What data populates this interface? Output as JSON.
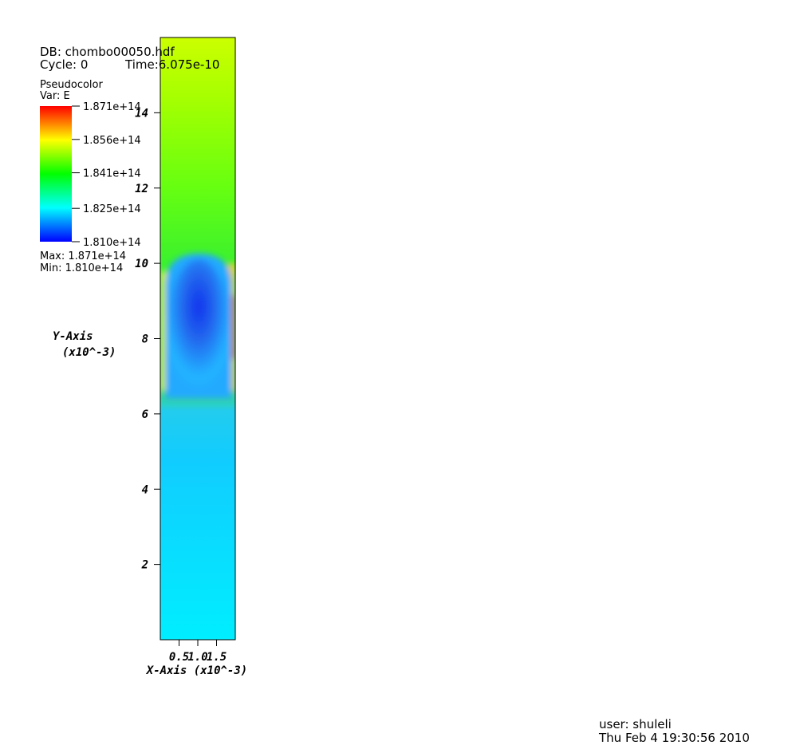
{
  "chart_data": {
    "type": "pseudocolor",
    "db": "DB: chombo00050.hdf",
    "cycle": "Cycle: 0",
    "time": "Time:6.075e-10",
    "plot_name": "Pseudocolor",
    "variable": "Var: E",
    "max_text": "Max:  1.871e+14",
    "min_text": "Min:  1.810e+14",
    "y_label": "Y-Axis",
    "y_units": "(x10^-3)",
    "x_label": "X-Axis (x10^-3)",
    "user": "user: shuleli",
    "date": "Thu Feb  4 19:30:56 2010",
    "xlim": [
      0,
      2
    ],
    "xticks": [
      0.5,
      {
        "value": 1,
        "label": "1.0"
      },
      1.5
    ],
    "ylim": [
      0,
      16
    ],
    "yticks": [
      2,
      4,
      6,
      8,
      10,
      12,
      14
    ],
    "clim": [
      181000000000000.0,
      187100000000000.0
    ],
    "cticks": [
      {
        "value": 181000000000000.0,
        "label": "1.810e+14"
      },
      {
        "value": 182500000000000.0,
        "label": "1.825e+14"
      },
      {
        "value": 184100000000000.0,
        "label": "1.841e+14"
      },
      {
        "value": 185600000000000.0,
        "label": "1.856e+14"
      },
      {
        "value": 187100000000000.0,
        "label": "1.871e+14"
      }
    ]
  }
}
